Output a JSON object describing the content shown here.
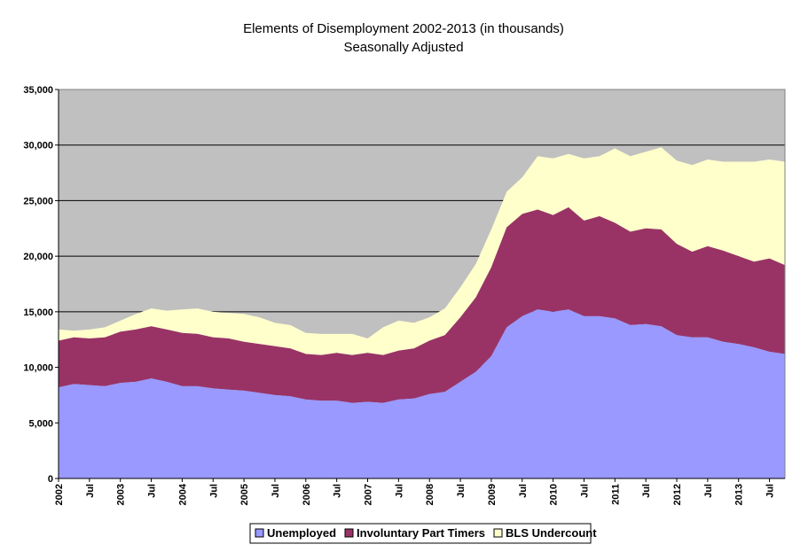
{
  "chart_data": {
    "type": "area",
    "stacked": true,
    "title": "Elements of Disemployment 2002-2013 (in thousands)",
    "subtitle": "Seasonally Adjusted",
    "xlabel": "",
    "ylabel": "",
    "ylim": [
      0,
      35000
    ],
    "yticks": [
      0,
      5000,
      10000,
      15000,
      20000,
      25000,
      30000,
      35000
    ],
    "ytick_labels": [
      "0",
      "5,000",
      "10,000",
      "15,000",
      "20,000",
      "25,000",
      "30,000",
      "35,000"
    ],
    "grid": true,
    "legend_position": "bottom",
    "colors": {
      "plot_background": "#c0c0c0",
      "unemployed": "#9999ff",
      "part_timers": "#993366",
      "undercount": "#ffffcc",
      "gridline": "#000000"
    },
    "x_start": "2002-01",
    "x_end": "2013-10",
    "x_tick_labels": [
      {
        "date": "2002-01",
        "label": "2002"
      },
      {
        "date": "2002-07",
        "label": "Jul"
      },
      {
        "date": "2003-01",
        "label": "2003"
      },
      {
        "date": "2003-07",
        "label": "Jul"
      },
      {
        "date": "2004-01",
        "label": "2004"
      },
      {
        "date": "2004-07",
        "label": "Jul"
      },
      {
        "date": "2005-01",
        "label": "2005"
      },
      {
        "date": "2005-07",
        "label": "Jul"
      },
      {
        "date": "2006-01",
        "label": "2006"
      },
      {
        "date": "2006-07",
        "label": "Jul"
      },
      {
        "date": "2007-01",
        "label": "2007"
      },
      {
        "date": "2007-07",
        "label": "Jul"
      },
      {
        "date": "2008-01",
        "label": "2008"
      },
      {
        "date": "2008-07",
        "label": "Jul"
      },
      {
        "date": "2009-01",
        "label": "2009"
      },
      {
        "date": "2009-07",
        "label": "Jul"
      },
      {
        "date": "2010-01",
        "label": "2010"
      },
      {
        "date": "2010-07",
        "label": "Jul"
      },
      {
        "date": "2011-01",
        "label": "2011"
      },
      {
        "date": "2011-07",
        "label": "Jul"
      },
      {
        "date": "2012-01",
        "label": "2012"
      },
      {
        "date": "2012-07",
        "label": "Jul"
      },
      {
        "date": "2013-01",
        "label": "2013"
      },
      {
        "date": "2013-07",
        "label": "Jul"
      }
    ],
    "series": [
      {
        "name": "Unemployed",
        "color": "#9999ff",
        "points": [
          [
            "2002-01",
            8200
          ],
          [
            "2002-04",
            8500
          ],
          [
            "2002-07",
            8400
          ],
          [
            "2002-10",
            8300
          ],
          [
            "2003-01",
            8600
          ],
          [
            "2003-04",
            8700
          ],
          [
            "2003-07",
            9000
          ],
          [
            "2003-10",
            8700
          ],
          [
            "2004-01",
            8300
          ],
          [
            "2004-04",
            8300
          ],
          [
            "2004-07",
            8100
          ],
          [
            "2004-10",
            8000
          ],
          [
            "2005-01",
            7900
          ],
          [
            "2005-04",
            7700
          ],
          [
            "2005-07",
            7500
          ],
          [
            "2005-10",
            7400
          ],
          [
            "2006-01",
            7100
          ],
          [
            "2006-04",
            7000
          ],
          [
            "2006-07",
            7000
          ],
          [
            "2006-10",
            6800
          ],
          [
            "2007-01",
            6900
          ],
          [
            "2007-04",
            6800
          ],
          [
            "2007-07",
            7100
          ],
          [
            "2007-10",
            7200
          ],
          [
            "2008-01",
            7600
          ],
          [
            "2008-04",
            7800
          ],
          [
            "2008-07",
            8700
          ],
          [
            "2008-10",
            9600
          ],
          [
            "2009-01",
            11000
          ],
          [
            "2009-04",
            13600
          ],
          [
            "2009-07",
            14600
          ],
          [
            "2009-10",
            15200
          ],
          [
            "2010-01",
            15000
          ],
          [
            "2010-04",
            15200
          ],
          [
            "2010-07",
            14600
          ],
          [
            "2010-10",
            14600
          ],
          [
            "2011-01",
            14400
          ],
          [
            "2011-04",
            13800
          ],
          [
            "2011-07",
            13900
          ],
          [
            "2011-10",
            13700
          ],
          [
            "2012-01",
            12900
          ],
          [
            "2012-04",
            12700
          ],
          [
            "2012-07",
            12700
          ],
          [
            "2012-10",
            12300
          ],
          [
            "2013-01",
            12100
          ],
          [
            "2013-04",
            11800
          ],
          [
            "2013-07",
            11400
          ],
          [
            "2013-10",
            11200
          ]
        ]
      },
      {
        "name": "Involuntary Part Timers",
        "color": "#993366",
        "points": [
          [
            "2002-01",
            4200
          ],
          [
            "2002-04",
            4200
          ],
          [
            "2002-07",
            4200
          ],
          [
            "2002-10",
            4400
          ],
          [
            "2003-01",
            4600
          ],
          [
            "2003-04",
            4700
          ],
          [
            "2003-07",
            4700
          ],
          [
            "2003-10",
            4700
          ],
          [
            "2004-01",
            4800
          ],
          [
            "2004-04",
            4700
          ],
          [
            "2004-07",
            4600
          ],
          [
            "2004-10",
            4600
          ],
          [
            "2005-01",
            4400
          ],
          [
            "2005-04",
            4400
          ],
          [
            "2005-07",
            4400
          ],
          [
            "2005-10",
            4300
          ],
          [
            "2006-01",
            4100
          ],
          [
            "2006-04",
            4100
          ],
          [
            "2006-07",
            4300
          ],
          [
            "2006-10",
            4300
          ],
          [
            "2007-01",
            4400
          ],
          [
            "2007-04",
            4300
          ],
          [
            "2007-07",
            4400
          ],
          [
            "2007-10",
            4500
          ],
          [
            "2008-01",
            4800
          ],
          [
            "2008-04",
            5100
          ],
          [
            "2008-07",
            5800
          ],
          [
            "2008-10",
            6700
          ],
          [
            "2009-01",
            8000
          ],
          [
            "2009-04",
            9000
          ],
          [
            "2009-07",
            9200
          ],
          [
            "2009-10",
            9000
          ],
          [
            "2010-01",
            8700
          ],
          [
            "2010-04",
            9200
          ],
          [
            "2010-07",
            8600
          ],
          [
            "2010-10",
            9000
          ],
          [
            "2011-01",
            8600
          ],
          [
            "2011-04",
            8400
          ],
          [
            "2011-07",
            8600
          ],
          [
            "2011-10",
            8700
          ],
          [
            "2012-01",
            8200
          ],
          [
            "2012-04",
            7700
          ],
          [
            "2012-07",
            8200
          ],
          [
            "2012-10",
            8200
          ],
          [
            "2013-01",
            7900
          ],
          [
            "2013-04",
            7700
          ],
          [
            "2013-07",
            8400
          ],
          [
            "2013-10",
            8000
          ]
        ]
      },
      {
        "name": "BLS Undercount",
        "color": "#ffffcc",
        "points": [
          [
            "2002-01",
            1000
          ],
          [
            "2002-04",
            600
          ],
          [
            "2002-07",
            800
          ],
          [
            "2002-10",
            900
          ],
          [
            "2003-01",
            1000
          ],
          [
            "2003-04",
            1400
          ],
          [
            "2003-07",
            1600
          ],
          [
            "2003-10",
            1700
          ],
          [
            "2004-01",
            2100
          ],
          [
            "2004-04",
            2300
          ],
          [
            "2004-07",
            2300
          ],
          [
            "2004-10",
            2300
          ],
          [
            "2005-01",
            2500
          ],
          [
            "2005-04",
            2400
          ],
          [
            "2005-07",
            2100
          ],
          [
            "2005-10",
            2100
          ],
          [
            "2006-01",
            1900
          ],
          [
            "2006-04",
            1900
          ],
          [
            "2006-07",
            1700
          ],
          [
            "2006-10",
            1900
          ],
          [
            "2007-01",
            1300
          ],
          [
            "2007-04",
            2500
          ],
          [
            "2007-07",
            2700
          ],
          [
            "2007-10",
            2300
          ],
          [
            "2008-01",
            2100
          ],
          [
            "2008-04",
            2400
          ],
          [
            "2008-07",
            2700
          ],
          [
            "2008-10",
            3000
          ],
          [
            "2009-01",
            3400
          ],
          [
            "2009-04",
            3200
          ],
          [
            "2009-07",
            3300
          ],
          [
            "2009-10",
            4800
          ],
          [
            "2010-01",
            5100
          ],
          [
            "2010-04",
            4800
          ],
          [
            "2010-07",
            5600
          ],
          [
            "2010-10",
            5400
          ],
          [
            "2011-01",
            6700
          ],
          [
            "2011-04",
            6800
          ],
          [
            "2011-07",
            6900
          ],
          [
            "2011-10",
            7400
          ],
          [
            "2012-01",
            7500
          ],
          [
            "2012-04",
            7800
          ],
          [
            "2012-07",
            7800
          ],
          [
            "2012-10",
            8000
          ],
          [
            "2013-01",
            8500
          ],
          [
            "2013-04",
            9000
          ],
          [
            "2013-07",
            8900
          ],
          [
            "2013-10",
            9300
          ]
        ]
      }
    ]
  }
}
